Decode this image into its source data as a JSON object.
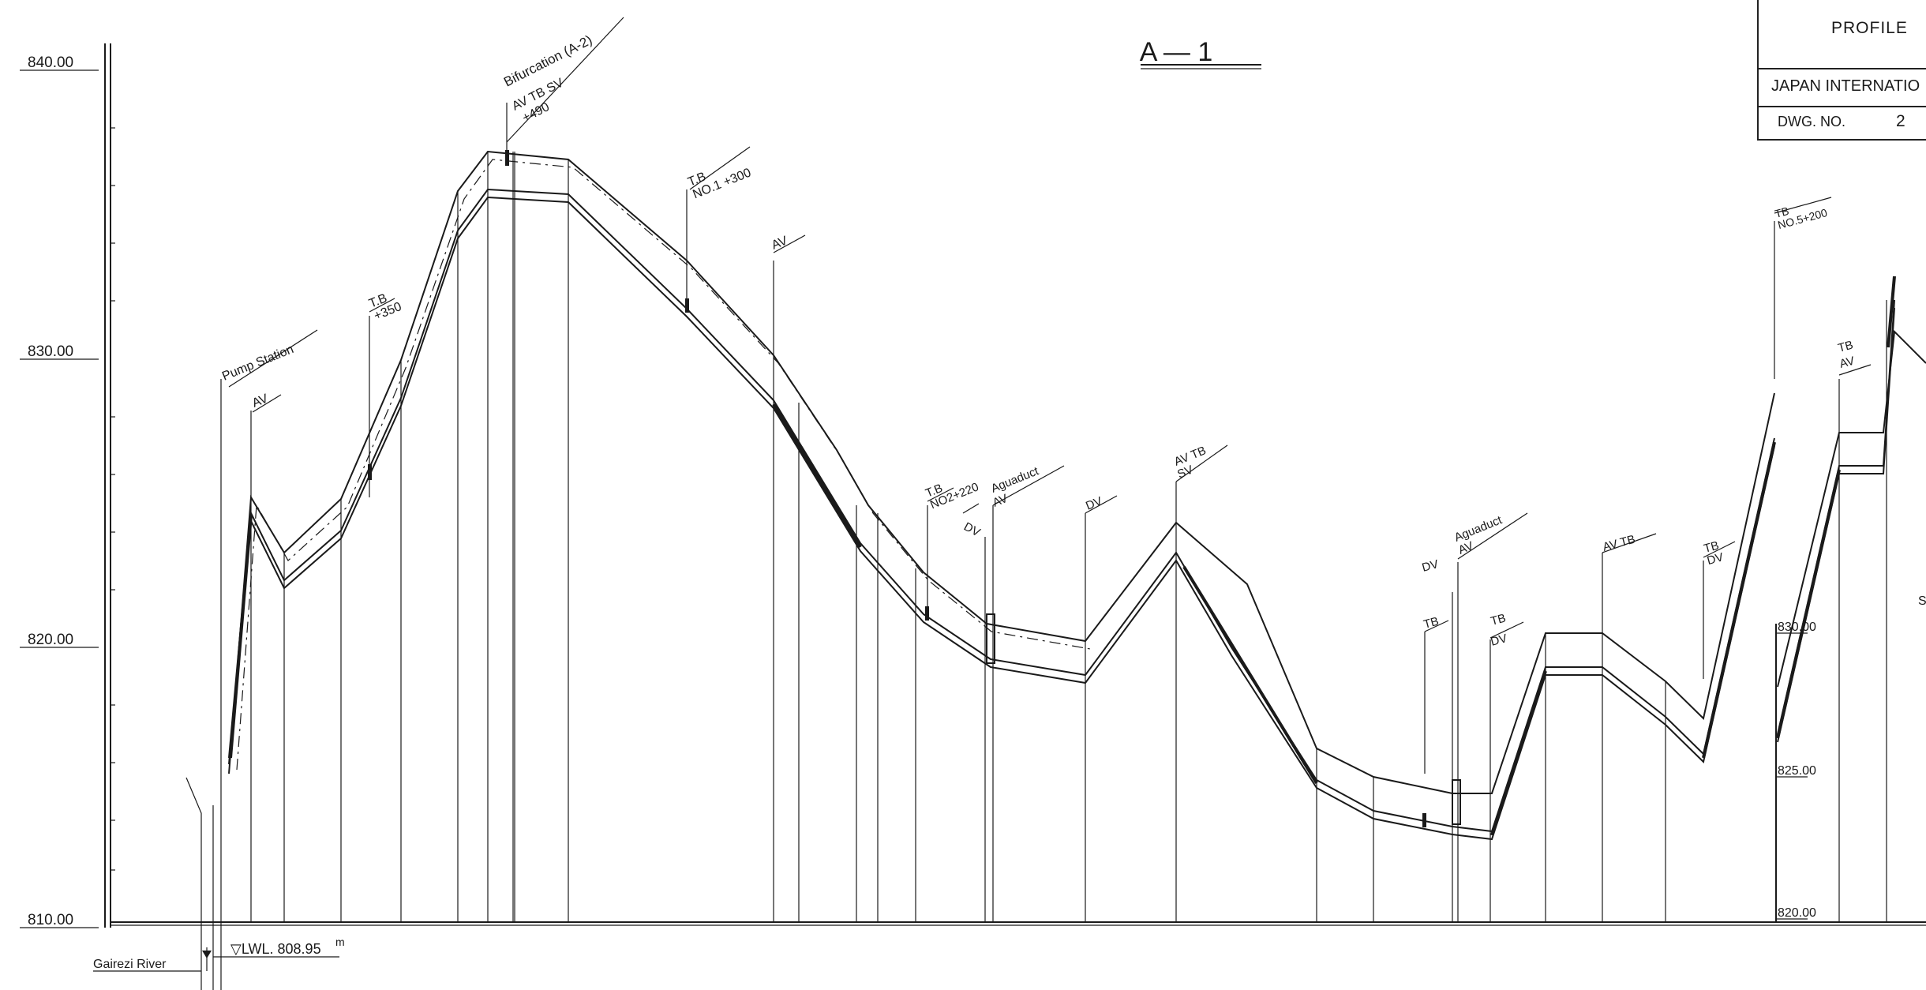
{
  "drawing_title": "A — 1",
  "title_block": {
    "title": "PROFILE",
    "organization": "JAPAN INTERNATIO",
    "dwg_label": "DWG.  NO.",
    "dwg_number": "2"
  },
  "left_axis": {
    "labels": [
      "840.00",
      "830.00",
      "820.00",
      "810.00"
    ]
  },
  "right_axis": {
    "labels": [
      "830.00",
      "825.00",
      "820.00"
    ]
  },
  "river": {
    "name": "Gairezi  River",
    "water_level": "▽LWL. 808.95",
    "unit": "m"
  },
  "annotations": [
    {
      "id": "pump-station",
      "text": "Pump Station"
    },
    {
      "id": "av-1",
      "text": "AV"
    },
    {
      "id": "tb-350",
      "text": "T.B\n+350"
    },
    {
      "id": "bifurcation",
      "text": "Bifurcation (A-2)"
    },
    {
      "id": "bif-sub",
      "text": "AV TB SV"
    },
    {
      "id": "bif-ch",
      "text": "+490"
    },
    {
      "id": "tb-no1",
      "text": "T.B\nNO.1 +300"
    },
    {
      "id": "av-2",
      "text": "AV"
    },
    {
      "id": "tb-no2",
      "text": "T.B\nNO2+220"
    },
    {
      "id": "dv-1",
      "text": "DV"
    },
    {
      "id": "aqueduct-1",
      "text": "Aguaduct"
    },
    {
      "id": "av-3",
      "text": "AV"
    },
    {
      "id": "dv-2",
      "text": "DV"
    },
    {
      "id": "av-tb-1",
      "text": "AV TB"
    },
    {
      "id": "sv-1",
      "text": "SV"
    },
    {
      "id": "dv-3",
      "text": "DV"
    },
    {
      "id": "aqueduct-2",
      "text": "Aguaduct"
    },
    {
      "id": "av-4",
      "text": "AV"
    },
    {
      "id": "tb-1",
      "text": "TB"
    },
    {
      "id": "tb-2",
      "text": "TB"
    },
    {
      "id": "dv-4",
      "text": "DV"
    },
    {
      "id": "av-tb-2",
      "text": "AV TB"
    },
    {
      "id": "tb-dv",
      "text": "TB\nDV"
    },
    {
      "id": "tb-no5",
      "text": "TB\nNO.5+200"
    },
    {
      "id": "tb-3",
      "text": "TB"
    },
    {
      "id": "av-5",
      "text": "AV"
    }
  ]
}
